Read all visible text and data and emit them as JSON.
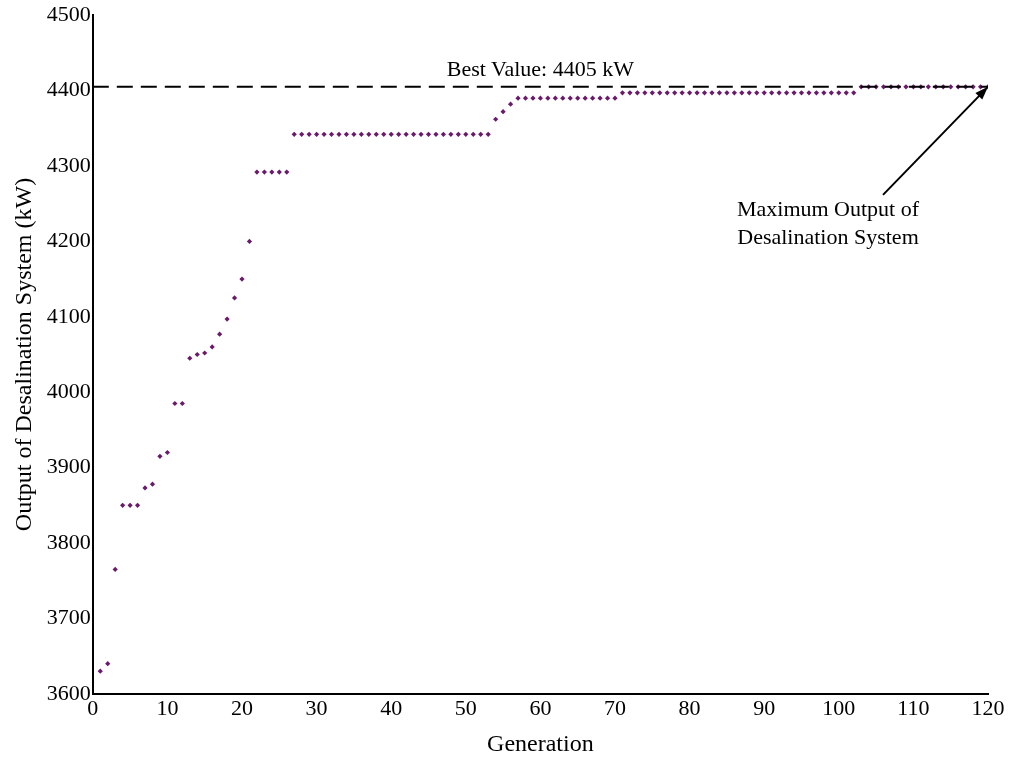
{
  "chart_data": {
    "type": "scatter",
    "xlabel": "Generation",
    "ylabel": "Output of Desalination System (kW)",
    "x": [
      1,
      2,
      3,
      4,
      5,
      6,
      7,
      8,
      9,
      10,
      11,
      12,
      13,
      14,
      15,
      16,
      17,
      18,
      19,
      20,
      21,
      22,
      23,
      24,
      25,
      26,
      27,
      28,
      29,
      30,
      31,
      32,
      33,
      34,
      35,
      36,
      37,
      38,
      39,
      40,
      41,
      42,
      43,
      44,
      45,
      46,
      47,
      48,
      49,
      50,
      51,
      52,
      53,
      54,
      55,
      56,
      57,
      58,
      59,
      60,
      61,
      62,
      63,
      64,
      65,
      66,
      67,
      68,
      69,
      70,
      71,
      72,
      73,
      74,
      75,
      76,
      77,
      78,
      79,
      80,
      81,
      82,
      83,
      84,
      85,
      86,
      87,
      88,
      89,
      90,
      91,
      92,
      93,
      94,
      95,
      96,
      97,
      98,
      99,
      100,
      101,
      102,
      103,
      104,
      105,
      106,
      107,
      108,
      109,
      110,
      111,
      112,
      113,
      114,
      115,
      116,
      117,
      118,
      119,
      120
    ],
    "values": [
      3630,
      3640,
      3765,
      3850,
      3850,
      3850,
      3873,
      3878,
      3915,
      3920,
      3985,
      3985,
      4045,
      4050,
      4052,
      4060,
      4077,
      4097,
      4125,
      4150,
      4200,
      4292,
      4292,
      4292,
      4292,
      4292,
      4342,
      4342,
      4342,
      4342,
      4342,
      4342,
      4342,
      4342,
      4342,
      4342,
      4342,
      4342,
      4342,
      4342,
      4342,
      4342,
      4342,
      4342,
      4342,
      4342,
      4342,
      4342,
      4342,
      4342,
      4342,
      4342,
      4342,
      4362,
      4372,
      4382,
      4390,
      4390,
      4390,
      4390,
      4390,
      4390,
      4390,
      4390,
      4390,
      4390,
      4390,
      4390,
      4390,
      4390,
      4397,
      4397,
      4397,
      4397,
      4397,
      4397,
      4397,
      4397,
      4397,
      4397,
      4397,
      4397,
      4397,
      4397,
      4397,
      4397,
      4397,
      4397,
      4397,
      4397,
      4397,
      4397,
      4397,
      4397,
      4397,
      4397,
      4397,
      4397,
      4397,
      4397,
      4397,
      4397,
      4405,
      4405,
      4405,
      4405,
      4405,
      4405,
      4405,
      4405,
      4405,
      4405,
      4405,
      4405,
      4405,
      4405,
      4405,
      4405,
      4405,
      4405
    ],
    "color": "#6b1a6b",
    "marker": "diamond",
    "xlim": [
      0,
      120
    ],
    "xticks": [
      0,
      10,
      20,
      30,
      40,
      50,
      60,
      70,
      80,
      90,
      100,
      110,
      120
    ],
    "ylim": [
      3600,
      4500
    ],
    "yticks": [
      3600,
      3700,
      3800,
      3900,
      4000,
      4100,
      4200,
      4300,
      4400,
      4500
    ],
    "grid": false,
    "legend": false,
    "ref_lines": [
      {
        "axis": "y",
        "value": 4405,
        "label": "Best Value: 4405 kW",
        "color": "#000000",
        "line_style": "dashed"
      }
    ],
    "annotations": [
      {
        "text": "Maximum Output of\nDesalination System",
        "x": 120,
        "y": 4405
      }
    ]
  }
}
